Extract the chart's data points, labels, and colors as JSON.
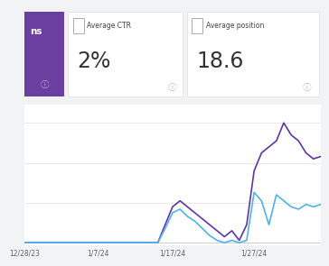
{
  "bg_color": "#f1f3f4",
  "card_bg": "#ffffff",
  "purple_card_color": "#6b3fa0",
  "title_partial": "ns",
  "ctr_label": "Average CTR",
  "ctr_value": "2%",
  "pos_label": "Average position",
  "pos_value": "18.6",
  "purple_line_color": "#5c35a8",
  "blue_line_color": "#4eb3e8",
  "grid_color": "#e8eaed",
  "axis_label_color": "#5f6368",
  "purple_data_x": [
    0,
    1,
    2,
    3,
    4,
    5,
    6,
    7,
    8,
    9,
    10,
    11,
    12,
    13,
    14,
    15,
    16,
    17,
    18,
    19,
    20,
    21,
    22,
    23,
    24,
    25,
    26,
    27,
    28,
    29,
    30,
    31,
    32,
    33,
    34,
    35,
    36,
    37,
    38,
    39,
    40
  ],
  "purple_data_y": [
    0,
    0,
    0,
    0,
    0,
    0,
    0,
    0,
    0,
    0,
    0,
    0,
    0,
    0,
    0,
    0,
    0,
    0,
    0,
    0.15,
    0.3,
    0.35,
    0.3,
    0.25,
    0.2,
    0.15,
    0.1,
    0.05,
    0.1,
    0.02,
    0.15,
    0.6,
    0.75,
    0.8,
    0.85,
    1.0,
    0.9,
    0.85,
    0.75,
    0.7,
    0.72
  ],
  "blue_data_x": [
    0,
    1,
    2,
    3,
    4,
    5,
    6,
    7,
    8,
    9,
    10,
    11,
    12,
    13,
    14,
    15,
    16,
    17,
    18,
    19,
    20,
    21,
    22,
    23,
    24,
    25,
    26,
    27,
    28,
    29,
    30,
    31,
    32,
    33,
    34,
    35,
    36,
    37,
    38,
    39,
    40
  ],
  "blue_data_y": [
    0,
    0,
    0,
    0,
    0,
    0,
    0,
    0,
    0,
    0,
    0,
    0,
    0,
    0,
    0,
    0,
    0,
    0,
    0,
    0.12,
    0.25,
    0.28,
    0.22,
    0.18,
    0.12,
    0.06,
    0.02,
    0.0,
    0.02,
    0.0,
    0.02,
    0.42,
    0.35,
    0.15,
    0.4,
    0.35,
    0.3,
    0.28,
    0.32,
    0.3,
    0.32
  ],
  "x_tick_positions": [
    0,
    10,
    20,
    31
  ],
  "x_tick_labels": [
    "12/28/23",
    "1/7/24",
    "1/17/24",
    "1/27/24"
  ]
}
